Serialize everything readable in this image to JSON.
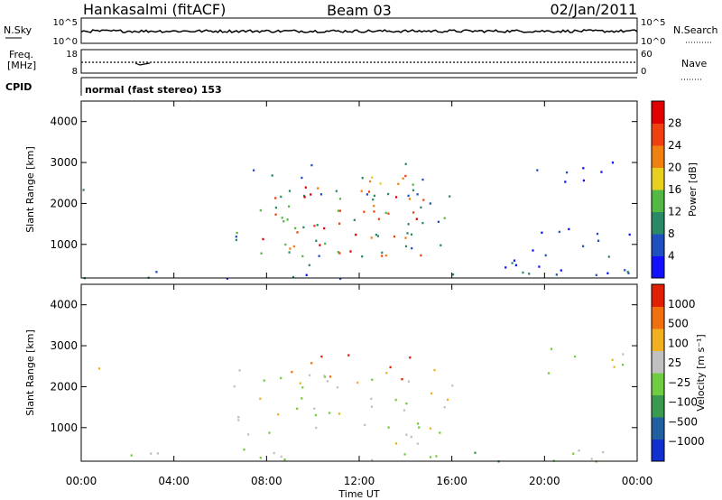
{
  "header": {
    "station": "Hankasalmi (fitACF)",
    "beam": "Beam 03",
    "date": "02/Jan/2011"
  },
  "strips": {
    "nsky_label": "N.Sky",
    "nsky_ticks": [
      "10^5",
      "10^0"
    ],
    "nsearch_label": "N.Search",
    "nsearch_ticks": [
      "10^5",
      "10^0"
    ],
    "freq_label_1": "Freq.",
    "freq_label_2": "[MHz]",
    "freq_ticks": [
      "18",
      "8"
    ],
    "nave_label": "Nave",
    "nave_ticks": [
      "60",
      "0"
    ],
    "cpid_label": "CPID",
    "cpid_text": "normal (fast stereo) 153"
  },
  "xaxis": {
    "label": "Time UT",
    "ticks": [
      "00:00",
      "04:00",
      "08:00",
      "12:00",
      "16:00",
      "20:00",
      "00:00"
    ]
  },
  "chart_data": [
    {
      "type": "heatmap",
      "panel": "power",
      "ylabel": "Slant Range [km]",
      "yticks": [
        "1000",
        "2000",
        "3000",
        "4000"
      ],
      "ylim": [
        180,
        4500
      ],
      "xlim_hours": [
        0,
        24
      ],
      "colorbar_label": "Power [dB]",
      "colorbar_ticks": [
        "4",
        "8",
        "12",
        "16",
        "20",
        "24",
        "28"
      ],
      "colors": [
        "#1010ff",
        "#2050c0",
        "#2a8a66",
        "#54b844",
        "#e8d020",
        "#f08010",
        "#f04010",
        "#e00000"
      ],
      "regions": [
        {
          "t0": 6.6,
          "t1": 15.9,
          "r0": 500,
          "r1": 3000,
          "level": 2
        },
        {
          "t0": 7.5,
          "t1": 14.8,
          "r0": 700,
          "r1": 2500,
          "level": 6
        },
        {
          "t0": 9.0,
          "t1": 14.0,
          "r0": 2300,
          "r1": 2800,
          "level": 5
        },
        {
          "t0": 0.0,
          "t1": 24.0,
          "r0": 180,
          "r1": 400,
          "level": 1
        },
        {
          "t0": 0.0,
          "t1": 1.0,
          "r0": 2350,
          "r1": 2600,
          "level": 1
        },
        {
          "t0": 18.2,
          "t1": 24.0,
          "r0": 300,
          "r1": 1500,
          "level": 1
        },
        {
          "t0": 19.5,
          "t1": 24.0,
          "r0": 2500,
          "r1": 3100,
          "level": 0
        }
      ]
    },
    {
      "type": "heatmap",
      "panel": "velocity",
      "ylabel": "Slant Range [km]",
      "yticks": [
        "1000",
        "2000",
        "3000",
        "4000"
      ],
      "ylim": [
        180,
        4500
      ],
      "xlim_hours": [
        0,
        24
      ],
      "colorbar_label": "Velocity [m s⁻¹]",
      "colorbar_ticks": [
        "1000",
        "500",
        "100",
        "25",
        "−25",
        "−100",
        "−500",
        "−1000"
      ],
      "colors": [
        "#1030d0",
        "#2060a0",
        "#3a9a50",
        "#70cc40",
        "#c0c0c0",
        "#f0b020",
        "#f07010",
        "#e02000"
      ],
      "regions": [
        {
          "t0": 6.5,
          "t1": 16.0,
          "r0": 600,
          "r1": 2500,
          "level": 4
        },
        {
          "t0": 9.0,
          "t1": 14.2,
          "r0": 2200,
          "r1": 2800,
          "level": 6
        },
        {
          "t0": 0.0,
          "t1": 24.0,
          "r0": 180,
          "r1": 500,
          "level": 3
        },
        {
          "t0": 19.8,
          "t1": 23.8,
          "r0": 2300,
          "r1": 3000,
          "level": 4
        },
        {
          "t0": 0.0,
          "t1": 1.0,
          "r0": 2350,
          "r1": 2550,
          "level": 4
        }
      ]
    }
  ]
}
